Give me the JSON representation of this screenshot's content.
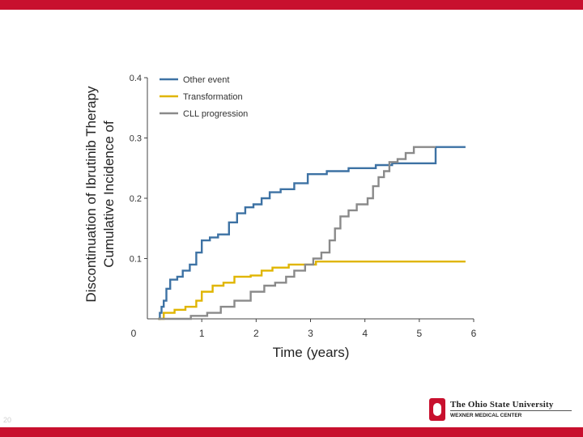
{
  "slide": {
    "number": "20",
    "logo_title": "The Ohio State University",
    "logo_subtitle": "WEXNER MEDICAL CENTER",
    "colors": {
      "accent": "#c8102e"
    }
  },
  "chart_data": {
    "type": "line",
    "step": true,
    "title": "",
    "xlabel": "Time (years)",
    "ylabel_line1": "Cumulative Incidence of",
    "ylabel_line2": "Discontinuation of Ibrutinib Therapy",
    "xlim": [
      0,
      6
    ],
    "ylim": [
      0,
      0.4
    ],
    "xticks": [
      "0",
      "1",
      "2",
      "3",
      "4",
      "5",
      "6"
    ],
    "yticks": [
      "0.1",
      "0.2",
      "0.3",
      "0.4"
    ],
    "legend_position": "top-left",
    "series": [
      {
        "name": "Other event",
        "color": "#3d72a4",
        "points": [
          [
            0.2,
            0
          ],
          [
            0.23,
            0.01
          ],
          [
            0.26,
            0.02
          ],
          [
            0.3,
            0.03
          ],
          [
            0.35,
            0.05
          ],
          [
            0.42,
            0.065
          ],
          [
            0.55,
            0.07
          ],
          [
            0.65,
            0.08
          ],
          [
            0.78,
            0.09
          ],
          [
            0.9,
            0.11
          ],
          [
            1.0,
            0.13
          ],
          [
            1.15,
            0.135
          ],
          [
            1.3,
            0.14
          ],
          [
            1.5,
            0.16
          ],
          [
            1.65,
            0.175
          ],
          [
            1.8,
            0.185
          ],
          [
            1.95,
            0.19
          ],
          [
            2.1,
            0.2
          ],
          [
            2.25,
            0.21
          ],
          [
            2.45,
            0.215
          ],
          [
            2.7,
            0.225
          ],
          [
            2.95,
            0.24
          ],
          [
            3.3,
            0.245
          ],
          [
            3.7,
            0.25
          ],
          [
            4.2,
            0.255
          ],
          [
            4.5,
            0.258
          ],
          [
            5.3,
            0.285
          ],
          [
            5.85,
            0.285
          ]
        ]
      },
      {
        "name": "Transformation",
        "color": "#e0b500",
        "points": [
          [
            0.2,
            0
          ],
          [
            0.3,
            0.01
          ],
          [
            0.5,
            0.015
          ],
          [
            0.7,
            0.02
          ],
          [
            0.9,
            0.03
          ],
          [
            1.0,
            0.045
          ],
          [
            1.2,
            0.055
          ],
          [
            1.4,
            0.06
          ],
          [
            1.6,
            0.07
          ],
          [
            1.9,
            0.072
          ],
          [
            2.1,
            0.08
          ],
          [
            2.3,
            0.085
          ],
          [
            2.6,
            0.09
          ],
          [
            3.1,
            0.095
          ],
          [
            5.85,
            0.095
          ]
        ]
      },
      {
        "name": "CLL progression",
        "color": "#8a8a8a",
        "points": [
          [
            0.2,
            0
          ],
          [
            0.8,
            0.005
          ],
          [
            1.1,
            0.01
          ],
          [
            1.35,
            0.02
          ],
          [
            1.6,
            0.03
          ],
          [
            1.9,
            0.045
          ],
          [
            2.15,
            0.055
          ],
          [
            2.35,
            0.06
          ],
          [
            2.55,
            0.07
          ],
          [
            2.7,
            0.08
          ],
          [
            2.9,
            0.09
          ],
          [
            3.05,
            0.1
          ],
          [
            3.2,
            0.11
          ],
          [
            3.35,
            0.13
          ],
          [
            3.45,
            0.15
          ],
          [
            3.55,
            0.17
          ],
          [
            3.7,
            0.18
          ],
          [
            3.85,
            0.19
          ],
          [
            4.05,
            0.2
          ],
          [
            4.15,
            0.22
          ],
          [
            4.25,
            0.235
          ],
          [
            4.35,
            0.245
          ],
          [
            4.45,
            0.26
          ],
          [
            4.6,
            0.265
          ],
          [
            4.75,
            0.275
          ],
          [
            4.9,
            0.285
          ],
          [
            5.3,
            0.285
          ]
        ]
      }
    ]
  }
}
